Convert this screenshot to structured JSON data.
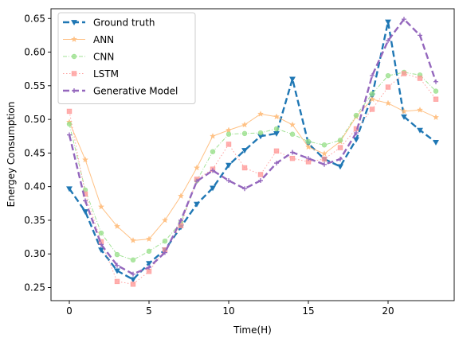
{
  "chart_data": {
    "type": "line",
    "xlabel": "Time(H)",
    "ylabel": "Energey Consumption",
    "xlim": [
      -1.15,
      24.15
    ],
    "ylim": [
      0.2305,
      0.6645
    ],
    "xticks": [
      0,
      5,
      10,
      15,
      20
    ],
    "yticks": [
      0.25,
      0.3,
      0.35,
      0.4,
      0.45,
      0.5,
      0.55,
      0.6,
      0.65
    ],
    "ytick_labels": [
      "0.25",
      "0.30",
      "0.35",
      "0.40",
      "0.45",
      "0.50",
      "0.55",
      "0.60",
      "0.65"
    ],
    "grid": false,
    "legend_position": "top-left",
    "x": [
      0,
      1,
      2,
      3,
      4,
      5,
      6,
      7,
      8,
      9,
      10,
      11,
      12,
      13,
      14,
      15,
      16,
      17,
      18,
      19,
      20,
      21,
      22,
      23
    ],
    "series": [
      {
        "name": "Ground truth",
        "color": "#1f77b4",
        "dash": "8,4",
        "width": 2.4,
        "opacity": 1,
        "marker": "triangle-down",
        "values": [
          0.397,
          0.363,
          0.306,
          0.275,
          0.262,
          0.286,
          0.306,
          0.34,
          0.374,
          0.398,
          0.432,
          0.454,
          0.475,
          0.479,
          0.56,
          0.464,
          0.441,
          0.43,
          0.47,
          0.535,
          0.645,
          0.504,
          0.484,
          0.466
        ]
      },
      {
        "name": "ANN",
        "color": "#ffbb78",
        "dash": "",
        "width": 1,
        "opacity": 0.9,
        "marker": "star",
        "values": [
          0.496,
          0.44,
          0.37,
          0.341,
          0.32,
          0.322,
          0.35,
          0.386,
          0.428,
          0.475,
          0.484,
          0.492,
          0.508,
          0.504,
          0.492,
          0.459,
          0.449,
          0.467,
          0.504,
          0.53,
          0.524,
          0.512,
          0.514,
          0.503
        ]
      },
      {
        "name": "CNN",
        "color": "#98df8a",
        "dash": "5,2,1,2",
        "width": 1,
        "opacity": 0.9,
        "marker": "circle",
        "values": [
          0.493,
          0.395,
          0.331,
          0.299,
          0.291,
          0.304,
          0.319,
          0.347,
          0.409,
          0.452,
          0.478,
          0.479,
          0.48,
          0.486,
          0.478,
          0.467,
          0.462,
          0.469,
          0.506,
          0.538,
          0.565,
          0.57,
          0.566,
          0.542
        ]
      },
      {
        "name": "LSTM",
        "color": "#ff9896",
        "dash": "1.5,2.5",
        "width": 1,
        "opacity": 0.9,
        "marker": "square",
        "values": [
          0.512,
          0.389,
          0.318,
          0.259,
          0.255,
          0.274,
          0.306,
          0.342,
          0.411,
          0.426,
          0.463,
          0.428,
          0.418,
          0.453,
          0.442,
          0.437,
          0.441,
          0.458,
          0.486,
          0.515,
          0.548,
          0.568,
          0.561,
          0.53
        ]
      },
      {
        "name": "Generative Model",
        "color": "#9467bd",
        "dash": "8,4",
        "width": 2.4,
        "opacity": 1,
        "marker": "plus",
        "values": [
          0.477,
          0.379,
          0.314,
          0.283,
          0.27,
          0.28,
          0.302,
          0.35,
          0.408,
          0.424,
          0.409,
          0.397,
          0.409,
          0.435,
          0.451,
          0.442,
          0.433,
          0.441,
          0.48,
          0.565,
          0.617,
          0.649,
          0.625,
          0.556
        ]
      }
    ]
  }
}
